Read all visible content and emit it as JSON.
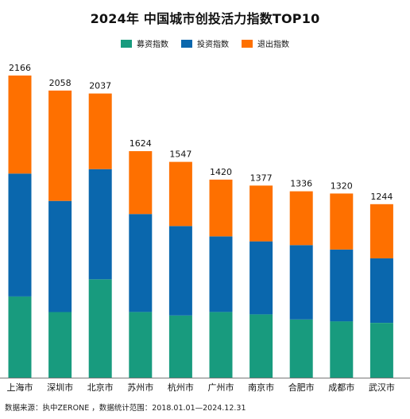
{
  "title": "2024年 中国城市创投活力指数TOP10",
  "legend": [
    {
      "name": "募资指数",
      "color": "#189b7e"
    },
    {
      "name": "投资指数",
      "color": "#0a67ad"
    },
    {
      "name": "退出指数",
      "color": "#fe7000"
    }
  ],
  "source": "数据来源：执中ZERONE ，数据统计范围：2018.01.01—2024.12.31",
  "chart_data": {
    "type": "bar",
    "stacked": true,
    "categories": [
      "上海市",
      "深圳市",
      "北京市",
      "苏州市",
      "杭州市",
      "广州市",
      "南京市",
      "合肥市",
      "成都市",
      "武汉市"
    ],
    "totals": [
      2166,
      2058,
      2037,
      1624,
      1547,
      1420,
      1377,
      1336,
      1320,
      1244
    ],
    "series": [
      {
        "name": "募资指数",
        "values": [
          582,
          470,
          705,
          471,
          446,
          471,
          454,
          417,
          404,
          393
        ]
      },
      {
        "name": "投资指数",
        "values": [
          881,
          797,
          790,
          702,
          641,
          542,
          523,
          533,
          515,
          463
        ]
      },
      {
        "name": "退出指数",
        "values": [
          703,
          791,
          542,
          451,
          460,
          407,
          400,
          386,
          401,
          388
        ]
      }
    ],
    "ylim": [
      0,
      2166
    ],
    "grid": false,
    "legend_position": "top"
  }
}
